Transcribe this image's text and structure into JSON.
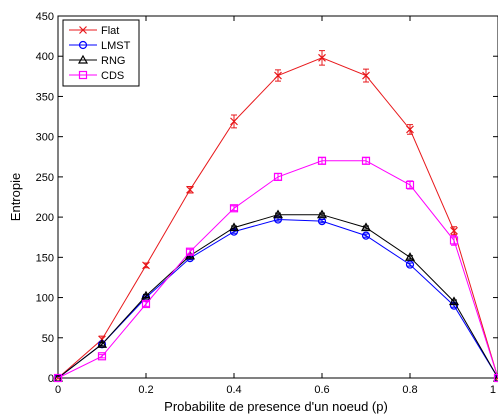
{
  "chart_data": {
    "type": "line",
    "title": "",
    "xlabel": "Probabilite de presence d'un noeud (p)",
    "ylabel": "Entropie",
    "xlim": [
      0,
      1
    ],
    "ylim": [
      0,
      450
    ],
    "xticks": [
      "0",
      "0.2",
      "0.4",
      "0.6",
      "0.8",
      "1"
    ],
    "yticks": [
      "0",
      "50",
      "100",
      "150",
      "200",
      "250",
      "300",
      "350",
      "400",
      "450"
    ],
    "grid": false,
    "legend_position": "top-left",
    "x": [
      0,
      0.1,
      0.2,
      0.3,
      0.4,
      0.5,
      0.6,
      0.7,
      0.8,
      0.9,
      1.0
    ],
    "series": [
      {
        "name": "Flat",
        "color": "#e8191c",
        "marker": "x",
        "values": [
          0,
          48,
          140,
          234,
          319,
          376,
          398,
          376,
          309,
          183,
          0
        ],
        "errors": [
          0,
          4,
          3,
          4,
          8,
          7,
          9,
          8,
          6,
          5,
          0
        ]
      },
      {
        "name": "LMST",
        "color": "#0000ff",
        "marker": "circle",
        "values": [
          0,
          42,
          100,
          149,
          182,
          197,
          195,
          177,
          141,
          90,
          0
        ],
        "errors": [
          0,
          2,
          2,
          2,
          2,
          2,
          2,
          2,
          2,
          2,
          0
        ]
      },
      {
        "name": "RNG",
        "color": "#000000",
        "marker": "triangle",
        "values": [
          0,
          42,
          102,
          152,
          187,
          203,
          203,
          187,
          150,
          95,
          0
        ],
        "errors": [
          0,
          2,
          2,
          2,
          2,
          2,
          2,
          2,
          2,
          2,
          0
        ]
      },
      {
        "name": "CDS",
        "color": "#ff00ff",
        "marker": "square",
        "values": [
          0,
          27,
          92,
          157,
          211,
          250,
          270,
          270,
          240,
          171,
          0
        ],
        "errors": [
          0,
          2,
          3,
          3,
          3,
          4,
          4,
          4,
          5,
          6,
          0
        ]
      }
    ]
  }
}
